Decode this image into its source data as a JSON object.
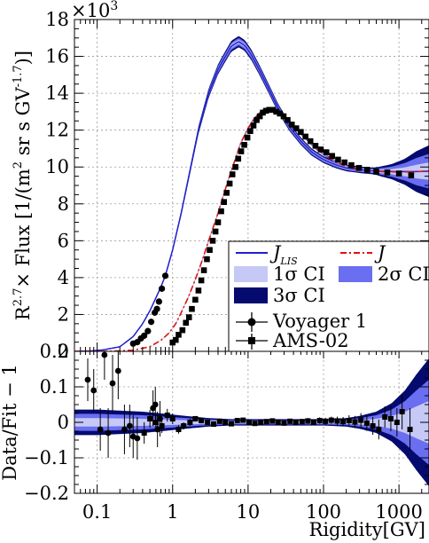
{
  "chart_data": [
    {
      "type": "line",
      "panel": "top",
      "xscale": "log",
      "xlim": [
        0.05,
        2500
      ],
      "ylim": [
        0,
        18000
      ],
      "ylabel_pre": "R",
      "ylabel_sup": "2.7",
      "ylabel_mid": "× Flux [1/(m",
      "ylabel_sup2": "2",
      "ylabel_post": " sr s GV",
      "ylabel_sup3": "-1.7",
      "ylabel_end": ")]",
      "multiplier": "×10",
      "multiplier_exp": "3",
      "yticks": [
        {
          "value": 0,
          "label": "0"
        },
        {
          "value": 2000,
          "label": "2"
        },
        {
          "value": 4000,
          "label": "4"
        },
        {
          "value": 6000,
          "label": "6"
        },
        {
          "value": 8000,
          "label": "8"
        },
        {
          "value": 10000,
          "label": "10"
        },
        {
          "value": 12000,
          "label": "12"
        },
        {
          "value": 14000,
          "label": "14"
        },
        {
          "value": 16000,
          "label": "16"
        },
        {
          "value": 18000,
          "label": "18"
        }
      ],
      "grid": true,
      "legend_position": "bottom-right",
      "legend": {
        "jlis_label": "J",
        "jlis_sub": "LIS",
        "j_label": "J",
        "ci1_label": "1σ CI",
        "ci2_label": "2σ CI",
        "ci3_label": "3σ CI",
        "voyager_label": "Voyager 1",
        "ams_label": "AMS-02"
      },
      "colors": {
        "jlis": "#1f1fcf",
        "j": "#e01010",
        "ci1": "#c6c9f5",
        "ci2": "#6a6ef0",
        "ci3": "#050a6e"
      },
      "series": [
        {
          "name": "J_LIS",
          "x": [
            0.05,
            0.08,
            0.12,
            0.2,
            0.3,
            0.4,
            0.5,
            0.6,
            0.7,
            0.8,
            1.0,
            1.3,
            1.7,
            2.2,
            3,
            4,
            5,
            6,
            7.5,
            9,
            11,
            14,
            18,
            25,
            35,
            50,
            70,
            100,
            150,
            200,
            300,
            400,
            500,
            700,
            1000,
            1500,
            2000,
            2500
          ],
          "y": [
            0,
            20,
            80,
            250,
            800,
            1500,
            2200,
            2900,
            3500,
            4100,
            5500,
            7500,
            9800,
            12000,
            14000,
            15300,
            16000,
            16550,
            16800,
            16600,
            16100,
            15300,
            14400,
            13200,
            12200,
            11400,
            10800,
            10400,
            10100,
            9950,
            9850,
            9800,
            9780,
            9760,
            9750,
            9750,
            9760,
            9770
          ]
        },
        {
          "name": "J",
          "x": [
            0.05,
            0.15,
            0.3,
            0.5,
            0.7,
            0.9,
            1.1,
            1.3,
            1.6,
            2.0,
            2.5,
            3.0,
            3.5,
            4.0,
            5,
            6,
            7,
            8,
            10,
            12,
            15,
            18,
            22,
            27,
            35,
            45,
            60,
            80,
            100,
            130,
            170,
            220,
            300,
            400,
            600,
            800,
            1000,
            1500,
            2000,
            2500
          ],
          "y": [
            0,
            5,
            60,
            250,
            600,
            1000,
            1500,
            2100,
            2900,
            3900,
            5000,
            6000,
            6800,
            7500,
            8800,
            9800,
            10600,
            11300,
            12100,
            12600,
            13000,
            13150,
            13100,
            12900,
            12500,
            12000,
            11500,
            11000,
            10700,
            10400,
            10150,
            10000,
            9870,
            9800,
            9750,
            9740,
            9730,
            9740,
            9760,
            9780
          ]
        }
      ],
      "points": [
        {
          "name": "Voyager 1",
          "x": [
            0.3,
            0.34,
            0.38,
            0.42,
            0.47,
            0.52,
            0.58,
            0.62,
            0.66,
            0.72,
            0.8
          ],
          "y": [
            420,
            500,
            700,
            850,
            1100,
            1600,
            2100,
            2300,
            2700,
            3400,
            4100
          ]
        },
        {
          "name": "AMS-02",
          "x": [
            1.0,
            1.1,
            1.2,
            1.35,
            1.5,
            1.65,
            1.8,
            2.0,
            2.2,
            2.4,
            2.6,
            2.85,
            3.1,
            3.4,
            3.7,
            4.0,
            4.4,
            4.8,
            5.2,
            5.7,
            6.2,
            6.8,
            7.4,
            8.1,
            8.9,
            9.8,
            10.7,
            11.8,
            13.0,
            14.3,
            15.7,
            17.3,
            19.1,
            21.2,
            23.6,
            26.4,
            29.6,
            33.4,
            38.0,
            43.5,
            50.0,
            57.7,
            67.0,
            78.2,
            92.0,
            109,
            130,
            156,
            190,
            234,
            295,
            380,
            500,
            700,
            1000,
            1450
          ],
          "y": [
            480,
            620,
            900,
            1150,
            1550,
            1850,
            2300,
            2800,
            3300,
            3850,
            4400,
            5000,
            5500,
            6000,
            6500,
            7000,
            7600,
            8100,
            8600,
            9100,
            9600,
            10000,
            10450,
            10850,
            11200,
            11600,
            11950,
            12250,
            12550,
            12750,
            12950,
            13050,
            13100,
            13100,
            13000,
            12900,
            12750,
            12550,
            12300,
            12100,
            11900,
            11650,
            11400,
            11150,
            10950,
            10800,
            10600,
            10400,
            10250,
            10100,
            9950,
            9850,
            9750,
            9700,
            9650,
            9550
          ]
        }
      ],
      "band_halfwidth_high_x": [
        300,
        500,
        800,
        1200,
        1700,
        2500
      ],
      "band_halfwidth_high_y": [
        100,
        200,
        400,
        700,
        1100,
        1400
      ]
    },
    {
      "type": "scatter",
      "panel": "bottom",
      "xscale": "log",
      "xlim": [
        0.05,
        2500
      ],
      "ylim": [
        -0.2,
        0.2
      ],
      "xlabel": "Rigidity[GV]",
      "ylabel": "Data/Fit − 1",
      "xticks": [
        {
          "value": 0.1,
          "label": "0.1"
        },
        {
          "value": 1,
          "label": "1"
        },
        {
          "value": 10,
          "label": "10"
        },
        {
          "value": 100,
          "label": "100"
        },
        {
          "value": 1000,
          "label": "1000"
        }
      ],
      "yticks": [
        {
          "value": -0.2,
          "label": "−0.2"
        },
        {
          "value": -0.1,
          "label": "−0.1"
        },
        {
          "value": 0,
          "label": "0"
        },
        {
          "value": 0.1,
          "label": "0.1"
        },
        {
          "value": 0.2,
          "label": "0.2"
        }
      ],
      "grid": true,
      "points": [
        {
          "name": "Voyager 1",
          "x": [
            0.075,
            0.09,
            0.11,
            0.125,
            0.14,
            0.16,
            0.19,
            0.23,
            0.27,
            0.3,
            0.34,
            0.55,
            0.59,
            0.63,
            0.68
          ],
          "y": [
            0.12,
            0.09,
            -0.02,
            0.19,
            -0.03,
            0.11,
            0.145,
            -0.02,
            -0.01,
            -0.04,
            -0.045,
            0.04,
            0.05,
            -0.02,
            0.01
          ],
          "err": [
            0.06,
            0.06,
            0.06,
            0.07,
            0.07,
            0.08,
            0.08,
            0.07,
            0.06,
            0.06,
            0.06,
            0.05,
            0.05,
            0.05,
            0.05
          ]
        },
        {
          "name": "AMS-02",
          "x": [
            0.42,
            0.5,
            0.6,
            0.72,
            0.85,
            1.0,
            1.2,
            1.4,
            1.7,
            2.0,
            2.4,
            2.9,
            3.5,
            4.2,
            5.0,
            6.0,
            7.2,
            8.6,
            10.3,
            12.3,
            14.7,
            17.6,
            21,
            25,
            30,
            36,
            43,
            52,
            62,
            74,
            89,
            106,
            127,
            152,
            182,
            218,
            261,
            313,
            375,
            450,
            540,
            650,
            780,
            940,
            1100,
            1400
          ],
          "y": [
            -0.03,
            0.01,
            0.0,
            -0.01,
            0.02,
            0.01,
            -0.02,
            -0.01,
            0.0,
            0.01,
            0.005,
            0.0,
            -0.005,
            0.003,
            0.0,
            -0.004,
            0.005,
            0.006,
            0.0,
            -0.003,
            0.0,
            0.002,
            0.004,
            0.0,
            -0.002,
            0.003,
            0.0,
            0.002,
            0.004,
            0.0,
            0.005,
            0.003,
            0.006,
            0.004,
            0.002,
            0.005,
            0.001,
            0.006,
            -0.002,
            -0.01,
            -0.02,
            0.015,
            0.01,
            0.0,
            0.03,
            -0.02
          ],
          "err": [
            0.03,
            0.025,
            0.02,
            0.02,
            0.018,
            0.015,
            0.012,
            0.01,
            0.01,
            0.008,
            0.008,
            0.007,
            0.007,
            0.006,
            0.006,
            0.006,
            0.006,
            0.006,
            0.006,
            0.006,
            0.006,
            0.006,
            0.006,
            0.006,
            0.006,
            0.006,
            0.007,
            0.007,
            0.008,
            0.008,
            0.009,
            0.01,
            0.01,
            0.012,
            0.013,
            0.015,
            0.017,
            0.02,
            0.022,
            0.025,
            0.028,
            0.03,
            0.035,
            0.04,
            0.05,
            0.06
          ]
        }
      ],
      "band_x": [
        0.05,
        0.1,
        0.2,
        0.4,
        0.8,
        1.5,
        3,
        6,
        12,
        25,
        50,
        100,
        200,
        300,
        500,
        800,
        1200,
        1700,
        2500
      ],
      "band_sigma": [
        0.012,
        0.012,
        0.011,
        0.01,
        0.008,
        0.006,
        0.004,
        0.003,
        0.003,
        0.003,
        0.003,
        0.003,
        0.004,
        0.006,
        0.01,
        0.018,
        0.03,
        0.045,
        0.06
      ]
    }
  ]
}
